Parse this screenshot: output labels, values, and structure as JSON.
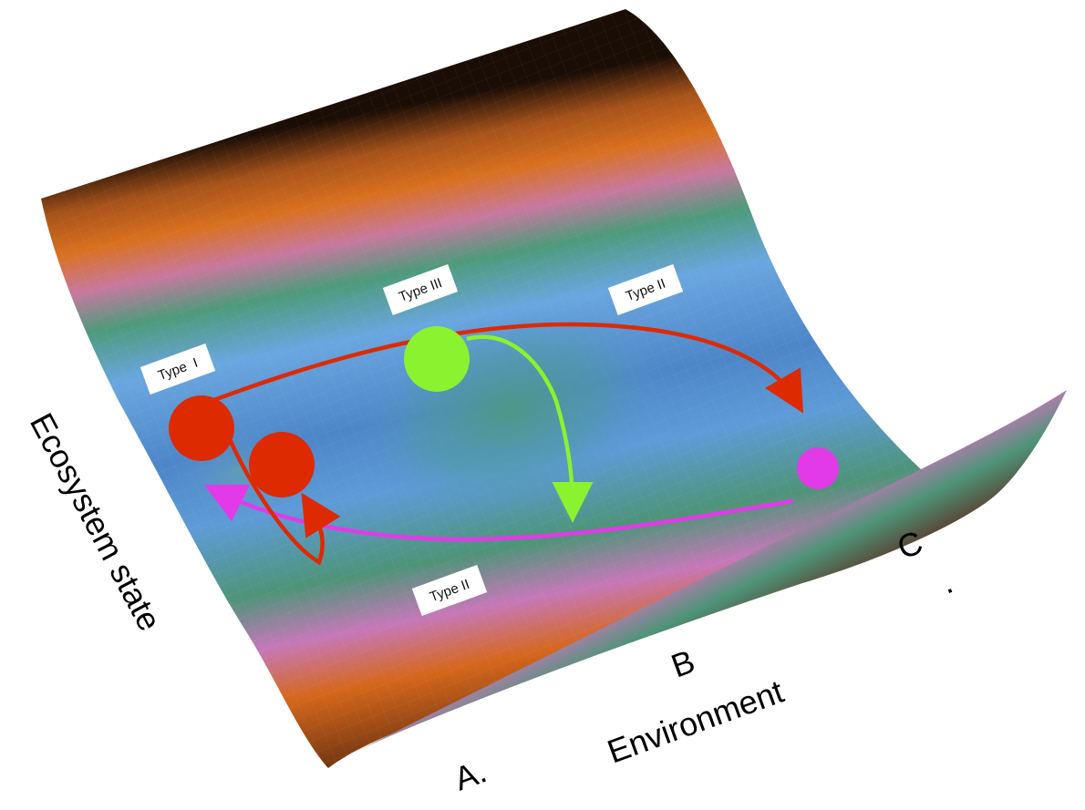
{
  "axes": {
    "ecosystem_state_label": "Ecosystem state",
    "environment_label": "Environment",
    "position_a": "A.",
    "position_b": "B",
    "position_c": "C",
    "position_c_dot": "."
  },
  "tags": {
    "type_one": "Type  I",
    "type_three": "Type III",
    "type_two_upper": "Type II",
    "type_two_lower": "Type II"
  },
  "colors": {
    "red_state": "#dd2a00",
    "green_state": "#8af22e",
    "magenta_state": "#e23ae6",
    "surface_blue": "#5b93d6",
    "surface_green": "#4d9a7b",
    "surface_pink": "#c878b8",
    "surface_orange": "#d0651e",
    "surface_dark": "#1a0d05"
  },
  "icons": {
    "red_ball": "circle",
    "green_ball": "circle",
    "magenta_ball": "circle"
  }
}
